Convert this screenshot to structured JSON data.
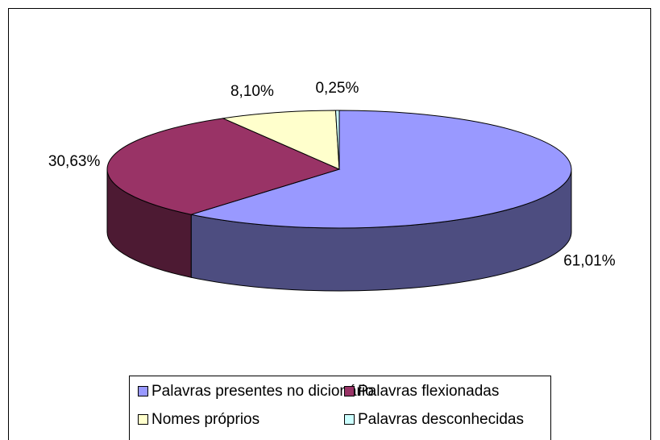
{
  "chart_data": {
    "type": "pie3d",
    "categories": [
      "Palavras presentes no dicionário",
      "Palavras flexionadas",
      "Nomes próprios",
      "Palavras desconhecidas"
    ],
    "values": [
      61.01,
      30.63,
      8.1,
      0.25
    ],
    "value_labels": [
      "61,01%",
      "30,63%",
      "8,10%",
      "0,25%"
    ],
    "colors": [
      "#9999ff",
      "#993366",
      "#ffffcc",
      "#ccffff"
    ],
    "legend": "bottom"
  }
}
